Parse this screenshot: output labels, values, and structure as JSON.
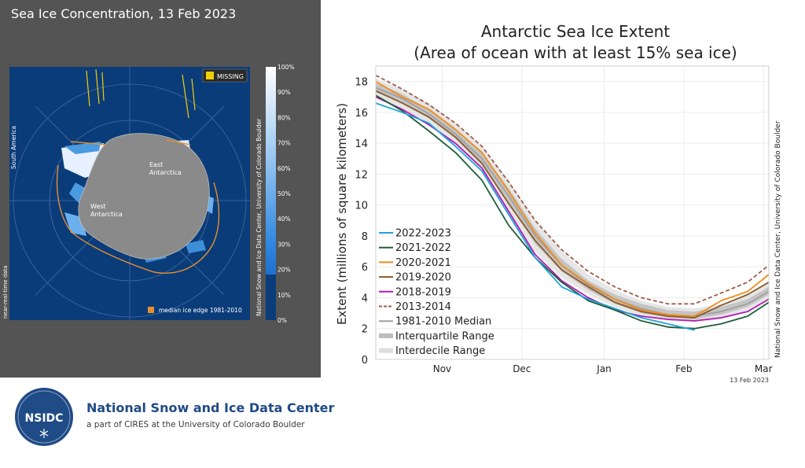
{
  "map": {
    "title": "Sea Ice Concentration, 13 Feb 2023",
    "missing_label": "MISSING",
    "missing_color": "#f0d000",
    "legend_label": "median ice edge 1981-2010",
    "median_edge_color": "#e8902a",
    "side_credit": "National Snow and Ice Data Center, University of Colorado Boulder",
    "near_real_time": "near-real-time data",
    "region_labels": [
      "South America",
      "East Antarctica",
      "West Antarctica"
    ],
    "colorbar_ticks": [
      "100%",
      "90%",
      "80%",
      "70%",
      "60%",
      "50%",
      "40%",
      "30%",
      "20%",
      "10%",
      "0%"
    ],
    "ocean_color": "#0b3c7a",
    "land_color": "#8a8a8a"
  },
  "chart_data": {
    "type": "line",
    "title_line1": "Antarctic Sea Ice Extent",
    "title_line2": "(Area of ocean with at least 15% sea ice)",
    "ylabel": "Extent (millions of square kilometers)",
    "xlabel": "",
    "ylim": [
      0,
      19
    ],
    "yticks": [
      0,
      2,
      4,
      6,
      8,
      10,
      12,
      14,
      16,
      18
    ],
    "xlim": [
      "2022-10-21",
      "2023-03-18"
    ],
    "month_ticks": [
      {
        "label": "Nov",
        "date": "2022-11-15"
      },
      {
        "label": "Dec",
        "date": "2022-12-15"
      },
      {
        "label": "Jan",
        "date": "2023-01-15"
      },
      {
        "label": "Feb",
        "date": "2023-02-14"
      },
      {
        "label": "Mar",
        "date": "2023-03-16"
      }
    ],
    "date_note": "13 Feb 2023",
    "side_credit": "National Snow and Ice Data Center, University of Colorado Boulder",
    "grid": true,
    "legend_position": "bottom-left",
    "x": [
      "2022-10-21",
      "2022-10-31",
      "2022-11-10",
      "2022-11-20",
      "2022-11-30",
      "2022-12-10",
      "2022-12-20",
      "2022-12-30",
      "2023-01-09",
      "2023-01-19",
      "2023-01-29",
      "2023-02-08",
      "2023-02-18",
      "2023-02-28",
      "2023-03-10",
      "2023-03-18"
    ],
    "series": [
      {
        "name": "2022-2023",
        "color": "#1fa3d9",
        "dash": "solid",
        "values": [
          16.6,
          16.0,
          15.3,
          13.8,
          12.2,
          9.4,
          6.6,
          4.7,
          3.9,
          3.3,
          2.7,
          2.3,
          1.9,
          null,
          null,
          null
        ]
      },
      {
        "name": "2021-2022",
        "color": "#1e5e3a",
        "dash": "solid",
        "values": [
          17.1,
          16.1,
          14.8,
          13.4,
          11.6,
          8.7,
          6.6,
          5.0,
          3.8,
          3.2,
          2.5,
          2.1,
          2.0,
          2.3,
          2.8,
          3.7
        ]
      },
      {
        "name": "2020-2021",
        "color": "#f08c1c",
        "dash": "solid",
        "values": [
          18.0,
          17.0,
          16.2,
          14.9,
          13.4,
          10.9,
          8.2,
          6.1,
          4.9,
          3.9,
          3.2,
          2.9,
          2.8,
          3.8,
          4.4,
          5.5
        ]
      },
      {
        "name": "2019-2020",
        "color": "#8b5a2b",
        "dash": "solid",
        "values": [
          17.4,
          16.6,
          15.7,
          14.4,
          12.7,
          10.1,
          7.7,
          5.8,
          4.7,
          3.7,
          3.1,
          2.8,
          2.7,
          3.5,
          4.2,
          5.0
        ]
      },
      {
        "name": "2018-2019",
        "color": "#b31ab3",
        "dash": "solid",
        "values": [
          17.0,
          16.2,
          15.2,
          14.0,
          12.4,
          9.6,
          6.8,
          5.1,
          4.0,
          3.2,
          2.8,
          2.6,
          2.5,
          2.7,
          3.1,
          3.9
        ]
      },
      {
        "name": "2013-2014",
        "color": "#a05a4a",
        "dash": "dashed",
        "values": [
          18.4,
          17.5,
          16.5,
          15.3,
          13.8,
          11.5,
          9.0,
          7.1,
          5.7,
          4.7,
          4.0,
          3.6,
          3.6,
          4.3,
          5.0,
          6.1
        ]
      },
      {
        "name": "1981-2010 Median",
        "color": "#a0a0a0",
        "dash": "solid",
        "values": [
          17.6,
          16.9,
          15.9,
          14.6,
          13.0,
          10.6,
          8.0,
          6.1,
          4.8,
          3.9,
          3.3,
          2.9,
          2.8,
          3.1,
          3.6,
          4.4
        ]
      }
    ],
    "interquartile": {
      "name": "Interquartile Range",
      "color": "#c4c4c4",
      "low": [
        17.3,
        16.6,
        15.6,
        14.3,
        12.6,
        10.1,
        7.5,
        5.7,
        4.5,
        3.6,
        3.0,
        2.7,
        2.6,
        2.9,
        3.4,
        4.2
      ],
      "high": [
        17.9,
        17.2,
        16.2,
        14.9,
        13.4,
        11.1,
        8.5,
        6.5,
        5.1,
        4.2,
        3.6,
        3.2,
        3.1,
        3.4,
        3.9,
        4.7
      ]
    },
    "interdecile": {
      "name": "Interdecile Range",
      "color": "#e6e6e6",
      "low": [
        17.0,
        16.3,
        15.2,
        13.9,
        12.2,
        9.6,
        7.0,
        5.3,
        4.2,
        3.4,
        2.8,
        2.5,
        2.4,
        2.6,
        3.1,
        3.9
      ],
      "high": [
        18.2,
        17.5,
        16.6,
        15.3,
        13.8,
        11.6,
        9.0,
        7.0,
        5.5,
        4.5,
        3.8,
        3.4,
        3.3,
        3.6,
        4.2,
        5.0
      ]
    }
  },
  "footer": {
    "logo_text": "NSIDC",
    "org_name": "National Snow and Ice Data Center",
    "org_sub": "a part of CIRES at the University of Colorado Boulder",
    "brand_color": "#1f4b86"
  }
}
